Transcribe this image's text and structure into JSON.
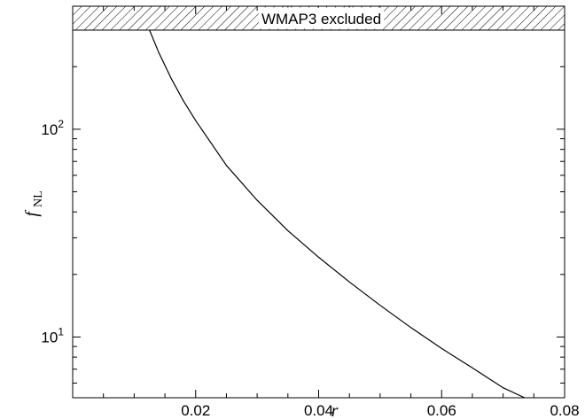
{
  "chart_data": {
    "type": "line",
    "title": "",
    "xlabel": "r",
    "ylabel": {
      "main": "f",
      "sub": "NL"
    },
    "xlim": [
      0.0,
      0.08
    ],
    "ylim": [
      5.1,
      300
    ],
    "ylog": true,
    "x_ticks": [
      0.02,
      0.04,
      0.06,
      0.08
    ],
    "x_tick_labels": [
      "0.02",
      "0.04",
      "0.06",
      "0.08"
    ],
    "y_ticks": [
      10,
      100
    ],
    "y_tick_labels": [
      {
        "base": "10",
        "exp": "1"
      },
      {
        "base": "10",
        "exp": "2"
      }
    ],
    "grid": false,
    "excluded_band": {
      "label": "WMAP3 excluded",
      "y_min": 300
    },
    "series": [
      {
        "x": [
          0.0125,
          0.014,
          0.016,
          0.018,
          0.02,
          0.025,
          0.03,
          0.035,
          0.04,
          0.045,
          0.05,
          0.055,
          0.06,
          0.065,
          0.07,
          0.0735
        ],
        "y": [
          300,
          234,
          176,
          137,
          110,
          67,
          45.5,
          32.5,
          24.2,
          18.4,
          14.2,
          11.1,
          8.8,
          7.1,
          5.7,
          5.1
        ]
      }
    ]
  }
}
